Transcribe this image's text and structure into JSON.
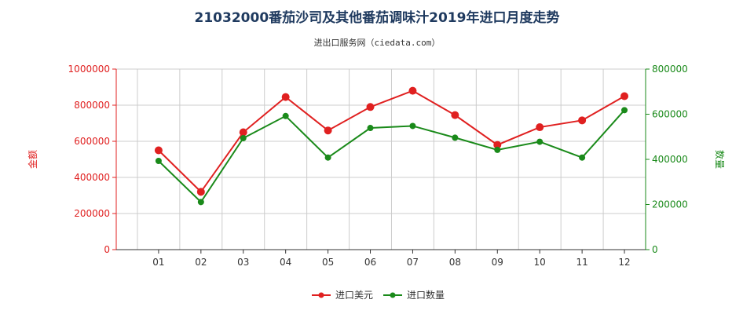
{
  "title": "21032000番茄沙司及其他番茄调味汁2019年进口月度走势",
  "subtitle": "进出口服务网（ciedata.com）",
  "colors": {
    "left_axis": "#e02020",
    "right_axis": "#1a8a1a",
    "grid": "#cccccc",
    "title": "#1f3a5f"
  },
  "chart_data": {
    "type": "line",
    "title": "21032000番茄沙司及其他番茄调味汁2019年进口月度走势",
    "categories": [
      "01",
      "02",
      "03",
      "04",
      "05",
      "06",
      "07",
      "08",
      "09",
      "10",
      "11",
      "12"
    ],
    "ylabel_left": "金额",
    "ylabel_right": "数量",
    "ylim_left": [
      0,
      1000000
    ],
    "ylim_right": [
      0,
      800000
    ],
    "yticks_left": [
      "0",
      "200000",
      "400000",
      "600000",
      "800000",
      "1000000"
    ],
    "yticks_right": [
      "0",
      "200000",
      "400000",
      "600000",
      "800000"
    ],
    "grid": true,
    "legend_position": "bottom",
    "series": [
      {
        "name": "进口美元",
        "axis": "left",
        "color": "#e02020",
        "values": [
          550000,
          320000,
          650000,
          845000,
          660000,
          790000,
          880000,
          745000,
          580000,
          678000,
          716000,
          850000
        ]
      },
      {
        "name": "进口数量",
        "axis": "right",
        "color": "#1a8a1a",
        "values": [
          393000,
          211000,
          494000,
          592000,
          408000,
          539000,
          548000,
          496000,
          442000,
          478000,
          408000,
          618000
        ]
      }
    ]
  }
}
